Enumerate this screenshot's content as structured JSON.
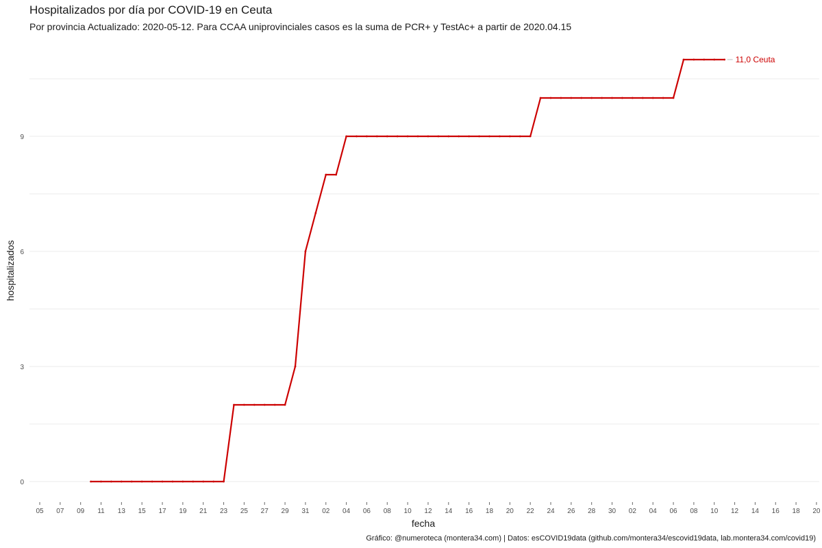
{
  "chart_data": {
    "type": "line",
    "title": "Hospitalizados por día por COVID-19 en Ceuta",
    "subtitle": "Por provincia  Actualizado: 2020-05-12. Para CCAA uniprovinciales casos es la suma de PCR+ y TestAc+ a partir de 2020.04.15",
    "xlabel": "fecha",
    "ylabel": "hospitalizados",
    "caption": "Gráfico: @numeroteca (montera34.com) | Datos: esCOVID19data (github.com/montera34/escovid19data, lab.montera34.com/covid19)",
    "x_tick_labels": [
      "05",
      "07",
      "09",
      "11",
      "13",
      "15",
      "17",
      "19",
      "21",
      "23",
      "25",
      "27",
      "29",
      "31",
      "02",
      "04",
      "06",
      "08",
      "10",
      "12",
      "14",
      "16",
      "18",
      "20",
      "22",
      "24",
      "26",
      "28",
      "30",
      "02",
      "04",
      "06",
      "08",
      "10",
      "12",
      "14",
      "16",
      "18",
      "20"
    ],
    "y_ticks": [
      0,
      3,
      6,
      9
    ],
    "ylim": [
      -0.5,
      11.5
    ],
    "grid": true,
    "series": [
      {
        "name": "Ceuta",
        "color": "#cc0000",
        "x": [
          "2020-03-10",
          "2020-03-11",
          "2020-03-12",
          "2020-03-13",
          "2020-03-14",
          "2020-03-15",
          "2020-03-16",
          "2020-03-17",
          "2020-03-18",
          "2020-03-19",
          "2020-03-20",
          "2020-03-21",
          "2020-03-22",
          "2020-03-23",
          "2020-03-24",
          "2020-03-25",
          "2020-03-26",
          "2020-03-27",
          "2020-03-28",
          "2020-03-29",
          "2020-03-30",
          "2020-03-31",
          "2020-04-01",
          "2020-04-02",
          "2020-04-03",
          "2020-04-04",
          "2020-04-05",
          "2020-04-06",
          "2020-04-07",
          "2020-04-08",
          "2020-04-09",
          "2020-04-10",
          "2020-04-11",
          "2020-04-12",
          "2020-04-13",
          "2020-04-14",
          "2020-04-15",
          "2020-04-16",
          "2020-04-17",
          "2020-04-18",
          "2020-04-19",
          "2020-04-20",
          "2020-04-21",
          "2020-04-22",
          "2020-04-23",
          "2020-04-24",
          "2020-04-25",
          "2020-04-26",
          "2020-04-27",
          "2020-04-28",
          "2020-04-29",
          "2020-04-30",
          "2020-05-01",
          "2020-05-02",
          "2020-05-03",
          "2020-05-04",
          "2020-05-05",
          "2020-05-06",
          "2020-05-07",
          "2020-05-08",
          "2020-05-09",
          "2020-05-10",
          "2020-05-11"
        ],
        "values": [
          0,
          0,
          0,
          0,
          0,
          0,
          0,
          0,
          0,
          0,
          0,
          0,
          0,
          0,
          2,
          2,
          2,
          2,
          2,
          2,
          3,
          6,
          7,
          8,
          8,
          9,
          9,
          9,
          9,
          9,
          9,
          9,
          9,
          9,
          9,
          9,
          9,
          9,
          9,
          9,
          9,
          9,
          9,
          9,
          10,
          10,
          10,
          10,
          10,
          10,
          10,
          10,
          10,
          10,
          10,
          10,
          10,
          10,
          11,
          11,
          11,
          11,
          11
        ],
        "end_label": "11,0 Ceuta"
      }
    ]
  }
}
